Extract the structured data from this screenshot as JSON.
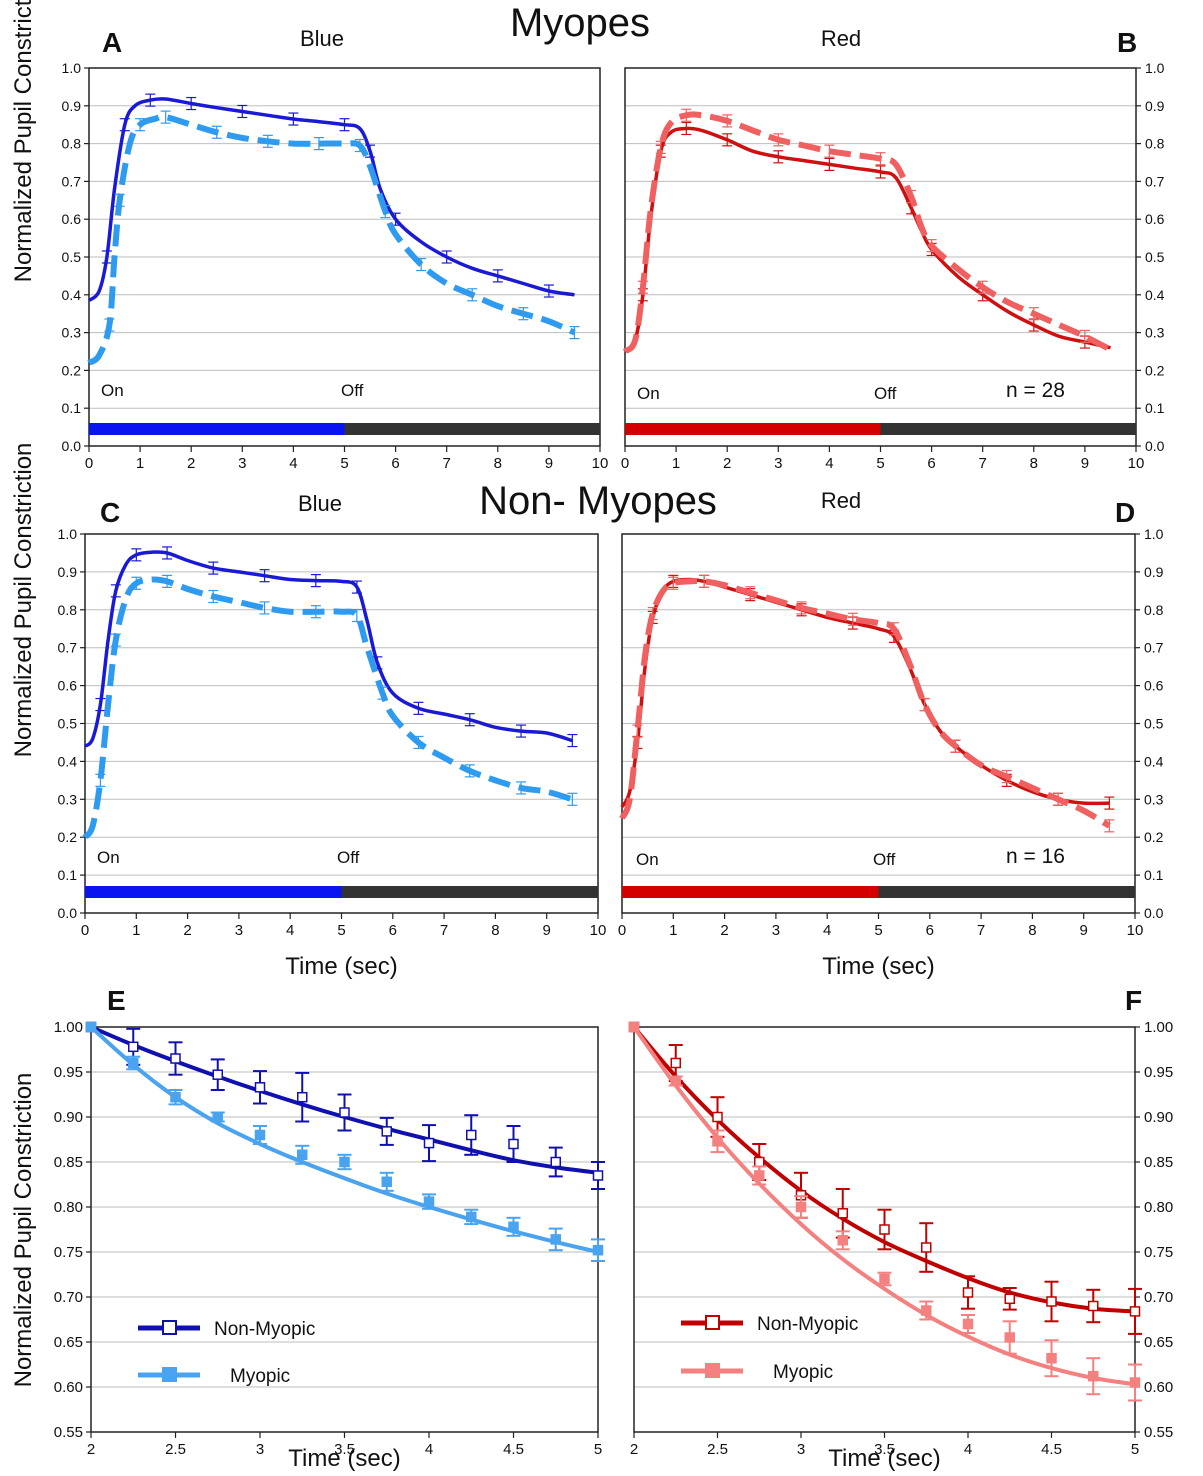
{
  "figure": {
    "row_titles": [
      "Myopes",
      "Non- Myopes"
    ],
    "panel_letters": [
      "A",
      "B",
      "C",
      "D",
      "E",
      "F"
    ],
    "ylabel": "Normalized Pupil Constriction",
    "xlabel": "Time (sec)"
  },
  "colors": {
    "blue_dark": "#1a1ad6",
    "blue_light": "#2f9bf0",
    "red_dark": "#d01010",
    "red_light": "#f06060",
    "red_dark_e": "#c00000",
    "red_light_e": "#f48080",
    "blue_dark_e": "#1010b0",
    "blue_light_e": "#4aa3ee",
    "bar_on_blue": "#0a14f0",
    "bar_on_red": "#d40000",
    "bar_off": "#333333"
  },
  "chart_data": [
    {
      "type": "line",
      "panel": "A",
      "title": "Blue",
      "ylabel": "Normalized Pupil Constriction",
      "xlim": [
        0,
        10
      ],
      "ylim": [
        0,
        1.0
      ],
      "xticks": [
        0,
        1,
        2,
        3,
        4,
        5,
        6,
        7,
        8,
        9,
        10
      ],
      "yticks": [
        "0.0",
        "0.1",
        "0.2",
        "0.3",
        "0.4",
        "0.5",
        "0.6",
        "0.7",
        "0.8",
        "0.9",
        "1.0"
      ],
      "annotations": {
        "on": "On",
        "off": "Off"
      },
      "stimulus": {
        "on": [
          0,
          5
        ],
        "off": [
          5,
          10
        ]
      },
      "series": [
        {
          "style": "solid",
          "color": "blue_dark",
          "x": [
            0,
            0.2,
            0.35,
            0.5,
            0.7,
            0.9,
            1.2,
            1.5,
            2,
            2.5,
            3,
            3.5,
            4,
            4.5,
            5,
            5.3,
            5.5,
            5.7,
            6,
            6.5,
            7,
            7.5,
            8,
            8.5,
            9,
            9.5
          ],
          "y": [
            0.385,
            0.41,
            0.5,
            0.68,
            0.85,
            0.9,
            0.915,
            0.918,
            0.906,
            0.895,
            0.885,
            0.875,
            0.865,
            0.858,
            0.85,
            0.84,
            0.78,
            0.68,
            0.6,
            0.54,
            0.5,
            0.47,
            0.45,
            0.43,
            0.41,
            0.4
          ]
        },
        {
          "style": "dashed",
          "color": "blue_light",
          "x": [
            0,
            0.2,
            0.4,
            0.5,
            0.6,
            0.8,
            1,
            1.3,
            1.5,
            2,
            2.5,
            3,
            3.5,
            4,
            4.5,
            5,
            5.3,
            5.5,
            5.8,
            6,
            6.5,
            7,
            7.5,
            8,
            8.5,
            9,
            9.5
          ],
          "y": [
            0.22,
            0.24,
            0.32,
            0.5,
            0.65,
            0.8,
            0.85,
            0.866,
            0.87,
            0.85,
            0.83,
            0.815,
            0.806,
            0.8,
            0.8,
            0.8,
            0.795,
            0.74,
            0.62,
            0.56,
            0.48,
            0.43,
            0.4,
            0.37,
            0.35,
            0.33,
            0.3
          ]
        }
      ]
    },
    {
      "type": "line",
      "panel": "B",
      "title": "Red",
      "ylabel": "",
      "xlim": [
        0,
        10
      ],
      "ylim": [
        0,
        1.0
      ],
      "xticks": [
        0,
        1,
        2,
        3,
        4,
        5,
        6,
        7,
        8,
        9,
        10
      ],
      "yticks": [
        "0.0",
        "0.1",
        "0.2",
        "0.3",
        "0.4",
        "0.5",
        "0.6",
        "0.7",
        "0.8",
        "0.9",
        "1.0"
      ],
      "annotations": {
        "on": "On",
        "off": "Off",
        "n": "n = 28"
      },
      "stimulus": {
        "on": [
          0,
          5
        ],
        "off": [
          5,
          10
        ]
      },
      "series": [
        {
          "style": "solid",
          "color": "red_dark",
          "x": [
            0,
            0.2,
            0.35,
            0.5,
            0.7,
            0.9,
            1.2,
            1.5,
            2,
            2.5,
            3,
            3.5,
            4,
            4.5,
            5,
            5.3,
            5.6,
            5.8,
            6,
            6.5,
            7,
            7.5,
            8,
            8.5,
            9,
            9.5
          ],
          "y": [
            0.25,
            0.28,
            0.4,
            0.6,
            0.78,
            0.83,
            0.84,
            0.835,
            0.81,
            0.78,
            0.765,
            0.755,
            0.745,
            0.735,
            0.725,
            0.71,
            0.63,
            0.57,
            0.52,
            0.45,
            0.4,
            0.355,
            0.32,
            0.29,
            0.275,
            0.26
          ]
        },
        {
          "style": "dashed",
          "color": "red_light",
          "x": [
            0,
            0.2,
            0.35,
            0.5,
            0.7,
            0.9,
            1.2,
            1.5,
            2,
            2.5,
            3,
            3.5,
            4,
            4.5,
            5,
            5.3,
            5.6,
            5.8,
            6,
            6.5,
            7,
            7.5,
            8,
            8.5,
            9,
            9.5
          ],
          "y": [
            0.25,
            0.28,
            0.42,
            0.62,
            0.79,
            0.855,
            0.875,
            0.875,
            0.86,
            0.835,
            0.81,
            0.795,
            0.78,
            0.77,
            0.76,
            0.745,
            0.66,
            0.58,
            0.53,
            0.47,
            0.42,
            0.38,
            0.35,
            0.32,
            0.29,
            0.255
          ]
        }
      ]
    },
    {
      "type": "line",
      "panel": "C",
      "title": "Blue",
      "ylabel": "Normalized Pupil Constriction",
      "xlabel": "Time (sec)",
      "xlim": [
        0,
        10
      ],
      "ylim": [
        0,
        1.0
      ],
      "xticks": [
        0,
        1,
        2,
        3,
        4,
        5,
        6,
        7,
        8,
        9,
        10
      ],
      "yticks": [
        "0.0",
        "0.1",
        "0.2",
        "0.3",
        "0.4",
        "0.5",
        "0.6",
        "0.7",
        "0.8",
        "0.9",
        "1.0"
      ],
      "annotations": {
        "on": "On",
        "off": "Off"
      },
      "stimulus": {
        "on": [
          0,
          5
        ],
        "off": [
          5,
          10
        ]
      },
      "series": [
        {
          "style": "solid",
          "color": "blue_dark",
          "x": [
            0,
            0.15,
            0.3,
            0.45,
            0.6,
            0.8,
            1.0,
            1.3,
            1.6,
            2,
            2.5,
            3,
            3.5,
            4,
            4.5,
            5,
            5.3,
            5.5,
            5.7,
            6,
            6.5,
            7,
            7.5,
            8,
            8.5,
            9,
            9.5
          ],
          "y": [
            0.44,
            0.46,
            0.55,
            0.72,
            0.85,
            0.92,
            0.945,
            0.952,
            0.95,
            0.93,
            0.91,
            0.9,
            0.89,
            0.88,
            0.877,
            0.875,
            0.86,
            0.77,
            0.66,
            0.58,
            0.54,
            0.525,
            0.51,
            0.49,
            0.48,
            0.475,
            0.455
          ]
        },
        {
          "style": "dashed",
          "color": "blue_light",
          "x": [
            0,
            0.15,
            0.3,
            0.45,
            0.6,
            0.8,
            1.0,
            1.3,
            1.6,
            2,
            2.5,
            3,
            3.5,
            4,
            4.5,
            5,
            5.3,
            5.5,
            5.8,
            6,
            6.5,
            7,
            7.5,
            8,
            8.5,
            9,
            9.5
          ],
          "y": [
            0.2,
            0.23,
            0.35,
            0.55,
            0.72,
            0.83,
            0.87,
            0.88,
            0.875,
            0.855,
            0.835,
            0.82,
            0.805,
            0.795,
            0.795,
            0.795,
            0.785,
            0.7,
            0.58,
            0.52,
            0.45,
            0.41,
            0.375,
            0.35,
            0.33,
            0.32,
            0.3
          ]
        }
      ]
    },
    {
      "type": "line",
      "panel": "D",
      "title": "Red",
      "ylabel": "",
      "xlabel": "Time (sec)",
      "xlim": [
        0,
        10
      ],
      "ylim": [
        0,
        1.0
      ],
      "xticks": [
        0,
        1,
        2,
        3,
        4,
        5,
        6,
        7,
        8,
        9,
        10
      ],
      "yticks": [
        "0.0",
        "0.1",
        "0.2",
        "0.3",
        "0.4",
        "0.5",
        "0.6",
        "0.7",
        "0.8",
        "0.9",
        "1.0"
      ],
      "annotations": {
        "on": "On",
        "off": "Off",
        "n": "n = 16"
      },
      "stimulus": {
        "on": [
          0,
          5
        ],
        "off": [
          5,
          10
        ]
      },
      "series": [
        {
          "style": "solid",
          "color": "red_dark",
          "x": [
            0,
            0.15,
            0.3,
            0.45,
            0.6,
            0.8,
            1.0,
            1.3,
            1.6,
            2,
            2.5,
            3,
            3.5,
            4,
            4.5,
            5,
            5.3,
            5.6,
            5.9,
            6.2,
            6.5,
            7,
            7.5,
            8,
            8.5,
            9,
            9.5
          ],
          "y": [
            0.28,
            0.32,
            0.45,
            0.65,
            0.78,
            0.85,
            0.875,
            0.88,
            0.875,
            0.86,
            0.84,
            0.82,
            0.8,
            0.78,
            0.765,
            0.75,
            0.73,
            0.65,
            0.55,
            0.48,
            0.44,
            0.39,
            0.35,
            0.32,
            0.3,
            0.29,
            0.29
          ]
        },
        {
          "style": "dashed",
          "color": "red_light",
          "x": [
            0,
            0.15,
            0.3,
            0.45,
            0.6,
            0.8,
            1.0,
            1.3,
            1.6,
            2,
            2.5,
            3,
            3.5,
            4,
            4.5,
            5,
            5.3,
            5.6,
            5.9,
            6.2,
            6.5,
            7,
            7.5,
            8,
            8.5,
            9,
            9.5
          ],
          "y": [
            0.25,
            0.3,
            0.48,
            0.68,
            0.79,
            0.85,
            0.87,
            0.875,
            0.875,
            0.865,
            0.845,
            0.825,
            0.805,
            0.79,
            0.775,
            0.765,
            0.75,
            0.66,
            0.55,
            0.48,
            0.44,
            0.39,
            0.36,
            0.33,
            0.3,
            0.27,
            0.23
          ]
        }
      ]
    },
    {
      "type": "line",
      "panel": "E",
      "ylabel": "Normalized Pupil Constriction",
      "xlabel": "Time (sec)",
      "xlim": [
        2,
        5
      ],
      "ylim": [
        0.55,
        1.0
      ],
      "xticks": [
        "2",
        "2.5",
        "3",
        "3.5",
        "4",
        "4.5",
        "5"
      ],
      "yticks": [
        "0.55",
        "0.60",
        "0.65",
        "0.70",
        "0.75",
        "0.80",
        "0.85",
        "0.90",
        "0.95",
        "1.00"
      ],
      "legend": [
        "Non-Myopic",
        "Myopic"
      ],
      "series": [
        {
          "name": "Non-Myopic",
          "color": "blue_dark_e",
          "marker": "open-square",
          "x": [
            2,
            2.25,
            2.5,
            2.75,
            3,
            3.25,
            3.5,
            3.75,
            4,
            4.25,
            4.5,
            4.75,
            5
          ],
          "y": [
            1.0,
            0.978,
            0.965,
            0.947,
            0.933,
            0.922,
            0.905,
            0.884,
            0.871,
            0.88,
            0.87,
            0.85,
            0.835
          ],
          "err": [
            0,
            0.02,
            0.018,
            0.017,
            0.018,
            0.027,
            0.02,
            0.015,
            0.02,
            0.022,
            0.02,
            0.016,
            0.015
          ],
          "fit_y": [
            1.0,
            0.98,
            0.962,
            0.945,
            0.929,
            0.914,
            0.9,
            0.887,
            0.875,
            0.863,
            0.852,
            0.844,
            0.838
          ]
        },
        {
          "name": "Myopic",
          "color": "blue_light_e",
          "marker": "filled-square",
          "x": [
            2,
            2.25,
            2.5,
            2.75,
            3,
            3.25,
            3.5,
            3.75,
            4,
            4.25,
            4.5,
            4.75,
            5
          ],
          "y": [
            1.0,
            0.96,
            0.922,
            0.9,
            0.88,
            0.858,
            0.85,
            0.828,
            0.806,
            0.789,
            0.778,
            0.764,
            0.752
          ],
          "err": [
            0,
            0.007,
            0.008,
            0.005,
            0.01,
            0.01,
            0.008,
            0.01,
            0.008,
            0.008,
            0.01,
            0.012,
            0.012
          ],
          "fit_y": [
            1.0,
            0.958,
            0.922,
            0.893,
            0.87,
            0.85,
            0.832,
            0.815,
            0.8,
            0.786,
            0.773,
            0.761,
            0.75
          ]
        }
      ]
    },
    {
      "type": "line",
      "panel": "F",
      "ylabel": "",
      "xlabel": "Time (sec)",
      "xlim": [
        2,
        5
      ],
      "ylim": [
        0.55,
        1.0
      ],
      "xticks": [
        "2",
        "2.5",
        "3",
        "3.5",
        "4",
        "4.5",
        "5"
      ],
      "yticks": [
        "0.55",
        "0.60",
        "0.65",
        "0.70",
        "0.75",
        "0.80",
        "0.85",
        "0.90",
        "0.95",
        "1.00"
      ],
      "legend": [
        "Non-Myopic",
        "Myopic"
      ],
      "series": [
        {
          "name": "Non-Myopic",
          "color": "red_dark_e",
          "marker": "open-square",
          "x": [
            2,
            2.25,
            2.5,
            2.75,
            3,
            3.25,
            3.5,
            3.75,
            4,
            4.25,
            4.5,
            4.75,
            5
          ],
          "y": [
            1.0,
            0.96,
            0.9,
            0.85,
            0.813,
            0.793,
            0.775,
            0.755,
            0.705,
            0.698,
            0.695,
            0.69,
            0.684
          ],
          "err": [
            0,
            0.02,
            0.022,
            0.02,
            0.025,
            0.027,
            0.022,
            0.027,
            0.018,
            0.012,
            0.022,
            0.018,
            0.025
          ],
          "fit_y": [
            1.0,
            0.945,
            0.897,
            0.855,
            0.818,
            0.787,
            0.761,
            0.74,
            0.721,
            0.705,
            0.694,
            0.687,
            0.684
          ]
        },
        {
          "name": "Myopic",
          "color": "red_light_e",
          "marker": "filled-square",
          "x": [
            2,
            2.25,
            2.5,
            2.75,
            3,
            3.25,
            3.5,
            3.75,
            4,
            4.25,
            4.5,
            4.75,
            5
          ],
          "y": [
            1.0,
            0.94,
            0.873,
            0.835,
            0.8,
            0.763,
            0.72,
            0.685,
            0.67,
            0.655,
            0.632,
            0.612,
            0.605
          ],
          "err": [
            0,
            0.005,
            0.012,
            0.01,
            0.012,
            0.01,
            0.007,
            0.01,
            0.01,
            0.018,
            0.02,
            0.02,
            0.02
          ],
          "fit_y": [
            1.0,
            0.935,
            0.877,
            0.826,
            0.781,
            0.742,
            0.709,
            0.68,
            0.656,
            0.636,
            0.621,
            0.61,
            0.603
          ]
        }
      ]
    }
  ]
}
